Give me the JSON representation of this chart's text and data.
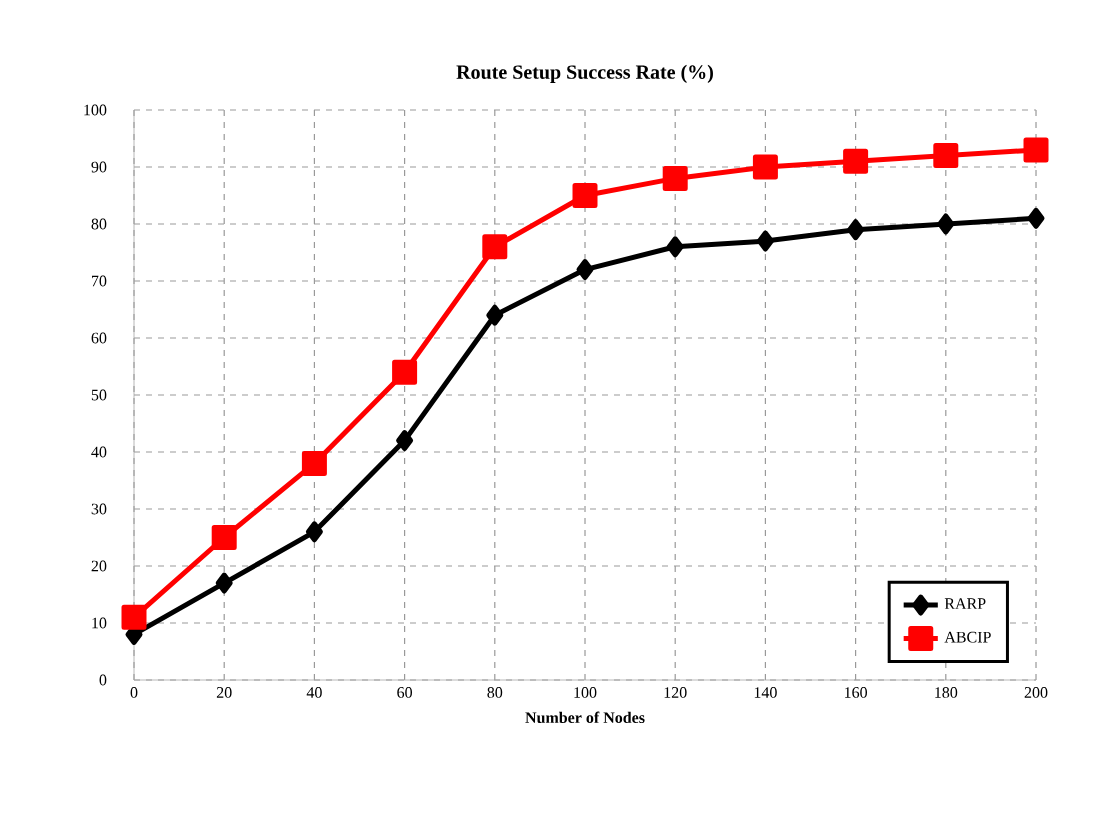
{
  "chart_data": {
    "type": "line",
    "title": "Route Setup Success Rate (%)",
    "xlabel": "Number of Nodes",
    "x": [
      0,
      20,
      40,
      60,
      80,
      100,
      120,
      140,
      160,
      180,
      200
    ],
    "series": [
      {
        "name": "RARP",
        "color": "#000000",
        "marker": "diamond",
        "values": [
          8,
          17,
          26,
          42,
          64,
          72,
          76,
          77,
          79,
          80,
          81
        ]
      },
      {
        "name": "ABCIP",
        "color": "#ff0000",
        "marker": "square",
        "values": [
          11,
          25,
          38,
          54,
          76,
          85,
          88,
          90,
          91,
          92,
          93
        ]
      }
    ],
    "xlim": [
      0,
      200
    ],
    "xticks": [
      0,
      20,
      40,
      60,
      80,
      100,
      120,
      140,
      160,
      180,
      200
    ],
    "ylim": [
      0,
      100
    ],
    "yticks": [
      0,
      10,
      20,
      30,
      40,
      50,
      60,
      70,
      80,
      90,
      100
    ],
    "grid": true,
    "legend": "bottom right",
    "line_style": "solid"
  }
}
